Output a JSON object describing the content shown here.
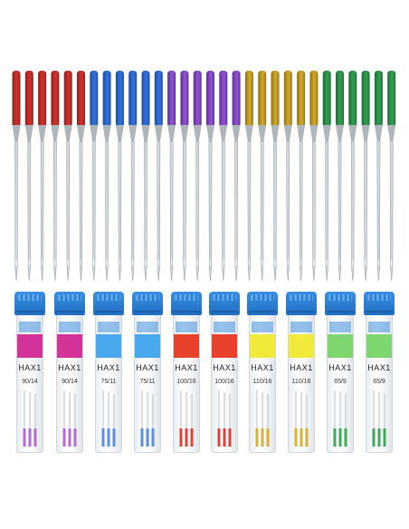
{
  "needles": {
    "colors": [
      "#c9302c",
      "#2f6fd6",
      "#8a4fc9",
      "#c9a227",
      "#2f9a4e"
    ],
    "per_group": 6,
    "shank_dark": [
      "#8e1f1a",
      "#1c4a9a",
      "#5d2d92",
      "#8f6f12",
      "#1d6b33"
    ]
  },
  "packets": [
    {
      "brand": "HAX1",
      "size": "90/14",
      "band_color": "#d4339a",
      "needle_color": "#b46ad6"
    },
    {
      "brand": "HAX1",
      "size": "90/14",
      "band_color": "#d4339a",
      "needle_color": "#b46ad6"
    },
    {
      "brand": "HAX1",
      "size": "75/11",
      "band_color": "#4aa8ef",
      "needle_color": "#5c8fe0"
    },
    {
      "brand": "HAX1",
      "size": "75/11",
      "band_color": "#4aa8ef",
      "needle_color": "#5c8fe0"
    },
    {
      "brand": "HAX1",
      "size": "100/16",
      "band_color": "#e8412c",
      "needle_color": "#d9433a"
    },
    {
      "brand": "HAX1",
      "size": "100/16",
      "band_color": "#e8412c",
      "needle_color": "#d9433a"
    },
    {
      "brand": "HAX1",
      "size": "110/16",
      "band_color": "#f1ea3a",
      "needle_color": "#d6b23a"
    },
    {
      "brand": "HAX1",
      "size": "110/16",
      "band_color": "#f1ea3a",
      "needle_color": "#d6b23a"
    },
    {
      "brand": "HAX1",
      "size": "65/9",
      "band_color": "#7ed66e",
      "needle_color": "#3fa85a"
    },
    {
      "brand": "HAX1",
      "size": "65/9",
      "band_color": "#7ed66e",
      "needle_color": "#3fa85a"
    }
  ]
}
